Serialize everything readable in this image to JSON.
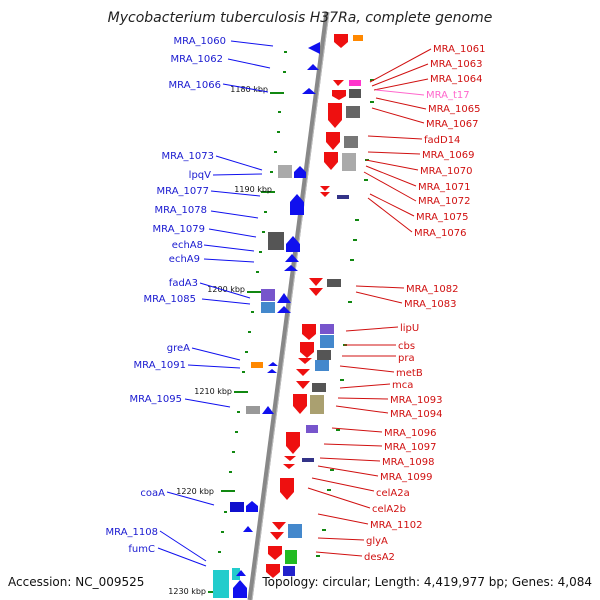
{
  "title": "Mycobacterium tuberculosis H37Ra, complete genome",
  "footer": {
    "accession": "Accession: NC_009525",
    "summary": "Topology: circular; Length: 4,419,977 bp; Genes: 4,084"
  },
  "colors": {
    "forward": "#1010ee",
    "reverse": "#ee1010",
    "trna": "#ff66cc",
    "tick": "#118811",
    "backbone": "#888888"
  },
  "ticks": [
    "1180 kbp",
    "1190 kbp",
    "1200 kbp",
    "1210 kbp",
    "1220 kbp",
    "1230 kbp"
  ],
  "left_genes": [
    "MRA_1060",
    "MRA_1062",
    "MRA_1066",
    "MRA_1073",
    "lpqV",
    "MRA_1077",
    "MRA_1078",
    "MRA_1079",
    "echA8",
    "echA9",
    "fadA3",
    "MRA_1085",
    "greA",
    "MRA_1091",
    "MRA_1095",
    "coaA",
    "MRA_1108",
    "fumC"
  ],
  "right_genes": [
    "MRA_1061",
    "MRA_1063",
    "MRA_1064",
    "MRA_t17",
    "MRA_1065",
    "MRA_1067",
    "fadD14",
    "MRA_1069",
    "MRA_1070",
    "MRA_1071",
    "MRA_1072",
    "MRA_1075",
    "MRA_1076",
    "MRA_1082",
    "MRA_1083",
    "lipU",
    "cbs",
    "pra",
    "metB",
    "mca",
    "MRA_1093",
    "MRA_1094",
    "MRA_1096",
    "MRA_1097",
    "MRA_1098",
    "MRA_1099",
    "celA2a",
    "celA2b",
    "MRA_1102",
    "glyA",
    "desA2"
  ]
}
